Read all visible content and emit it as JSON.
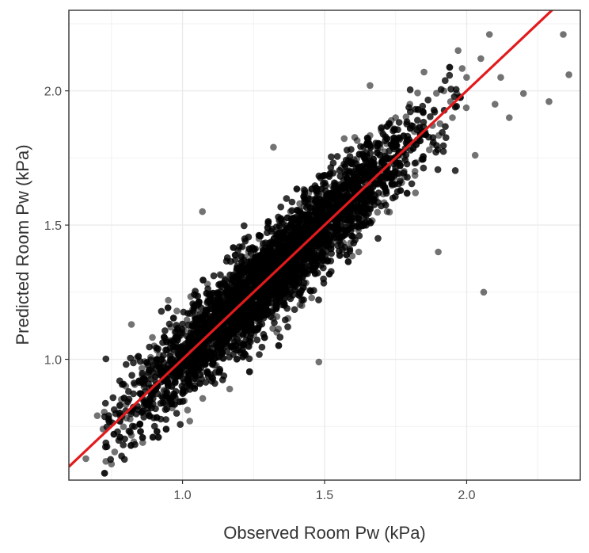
{
  "chart_data": {
    "type": "scatter",
    "title": "",
    "xlabel": "Observed Room Pw (kPa)",
    "ylabel": "Predicted Room Pw (kPa)",
    "xlim": [
      0.6,
      2.4
    ],
    "ylim": [
      0.55,
      2.3
    ],
    "x_ticks": [
      "1.0",
      "1.5",
      "2.0"
    ],
    "y_ticks": [
      "1.0",
      "1.5",
      "2.0"
    ],
    "grid": true,
    "legend": "none",
    "point_color": "#000000",
    "point_opacity": 0.55,
    "reference_line": {
      "slope": 1,
      "intercept": 0,
      "color": "#e31a1c"
    },
    "series": [
      {
        "points_approx": [
          [
            0.66,
            0.63
          ],
          [
            0.73,
            0.62
          ],
          [
            0.75,
            0.61
          ],
          [
            0.72,
            0.74
          ],
          [
            0.7,
            0.79
          ],
          [
            0.78,
            0.83
          ],
          [
            0.8,
            0.9
          ],
          [
            0.82,
            1.13
          ],
          [
            0.86,
            0.69
          ],
          [
            0.88,
            0.94
          ],
          [
            0.9,
            1.05
          ],
          [
            0.92,
            0.98
          ],
          [
            0.95,
            1.22
          ],
          [
            0.98,
            1.18
          ],
          [
            1.0,
            1.05
          ],
          [
            1.02,
            0.92
          ],
          [
            1.05,
            1.15
          ],
          [
            1.07,
            1.55
          ],
          [
            1.1,
            1.2
          ],
          [
            1.12,
            1.08
          ],
          [
            1.15,
            1.3
          ],
          [
            1.18,
            1.1
          ],
          [
            1.2,
            1.25
          ],
          [
            1.22,
            1.45
          ],
          [
            1.25,
            1.2
          ],
          [
            1.28,
            1.35
          ],
          [
            1.3,
            1.4
          ],
          [
            1.32,
            1.79
          ],
          [
            1.35,
            1.3
          ],
          [
            1.38,
            1.5
          ],
          [
            1.4,
            1.35
          ],
          [
            1.42,
            1.2
          ],
          [
            1.45,
            1.55
          ],
          [
            1.48,
            0.99
          ],
          [
            1.5,
            1.45
          ],
          [
            1.52,
            1.6
          ],
          [
            1.55,
            1.5
          ],
          [
            1.58,
            1.7
          ],
          [
            1.6,
            1.55
          ],
          [
            1.62,
            1.4
          ],
          [
            1.65,
            1.75
          ],
          [
            1.66,
            2.02
          ],
          [
            1.68,
            1.6
          ],
          [
            1.7,
            1.85
          ],
          [
            1.72,
            1.55
          ],
          [
            1.75,
            1.9
          ],
          [
            1.78,
            1.7
          ],
          [
            1.8,
            1.95
          ],
          [
            1.82,
            1.62
          ],
          [
            1.85,
            2.07
          ],
          [
            1.88,
            1.8
          ],
          [
            1.9,
            1.4
          ],
          [
            1.92,
            2.0
          ],
          [
            1.95,
            1.9
          ],
          [
            1.97,
            2.15
          ],
          [
            2.0,
            2.05
          ],
          [
            2.03,
            1.76
          ],
          [
            2.05,
            2.12
          ],
          [
            2.06,
            1.25
          ],
          [
            2.08,
            2.21
          ],
          [
            2.1,
            1.95
          ],
          [
            2.12,
            2.05
          ],
          [
            2.15,
            1.9
          ],
          [
            2.2,
            1.99
          ],
          [
            2.29,
            1.96
          ],
          [
            2.34,
            2.21
          ],
          [
            2.36,
            2.06
          ]
        ]
      }
    ]
  }
}
